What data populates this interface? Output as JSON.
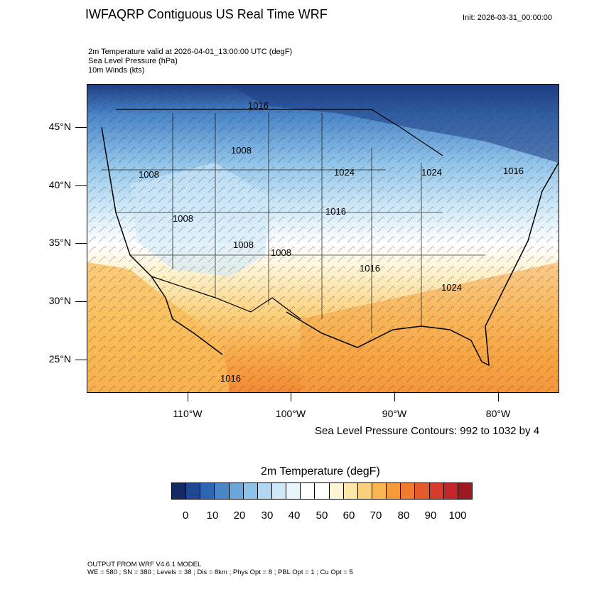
{
  "header": {
    "title": "IWFAQRP Contiguous US Real Time WRF",
    "init": "Init: 2026-03-31_00:00:00"
  },
  "fields": [
    "2m Temperature valid at 2026-04-01_13:00:00 UTC   (degF)",
    "Sea Level Pressure   (hPa)",
    "10m Winds   (kts)"
  ],
  "axes": {
    "lat_labels": [
      "45°N",
      "40°N",
      "35°N",
      "30°N",
      "25°N"
    ],
    "lon_labels": [
      "110°W",
      "100°W",
      "90°W",
      "80°W"
    ]
  },
  "pressure_labels": [
    "1016",
    "1008",
    "1008",
    "1024",
    "1024",
    "1016",
    "1016",
    "1008",
    "1008",
    "1008",
    "1016",
    "1024",
    "1016"
  ],
  "contour_note": "Sea Level Pressure Contours: 992 to 1032 by 4",
  "colorbar": {
    "title": "2m Temperature  (degF)",
    "labels": [
      "0",
      "10",
      "20",
      "30",
      "40",
      "50",
      "60",
      "70",
      "80",
      "90",
      "100"
    ],
    "colors": [
      "#142a63",
      "#1f4792",
      "#2f66b3",
      "#4a86c8",
      "#6aa6da",
      "#8fc2e8",
      "#b0d8f2",
      "#cfe8f8",
      "#eaf4fb",
      "#ffffff",
      "#ffffff",
      "#fdf5d6",
      "#fce6a8",
      "#fbd07a",
      "#f9b652",
      "#f59a3a",
      "#ee7b2e",
      "#e55a2c",
      "#d83a2b",
      "#c2262a",
      "#9c1a1e"
    ]
  },
  "footer": {
    "line1": "OUTPUT FROM WRF V4.6.1 MODEL",
    "line2": "WE = 580 ; SN = 380 ; Levels = 38 ; Dis = 8km ; Phys Opt = 8 ; PBL Opt = 1 ; Cu Opt = 5"
  }
}
